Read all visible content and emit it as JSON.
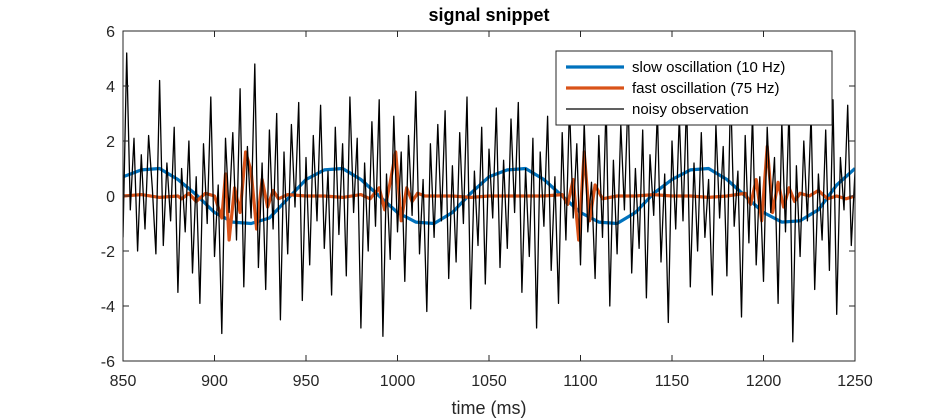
{
  "chart_data": {
    "type": "line",
    "title": "signal snippet",
    "xlabel": "time (ms)",
    "ylabel": "",
    "xlim": [
      850,
      1250
    ],
    "ylim": [
      -6,
      6
    ],
    "xticks": [
      850,
      900,
      950,
      1000,
      1050,
      1100,
      1150,
      1200,
      1250
    ],
    "yticks": [
      -6,
      -4,
      -2,
      0,
      2,
      4,
      6
    ],
    "grid": false,
    "legend_position": "top-right",
    "series": [
      {
        "name": "slow oscillation (10 Hz)",
        "color": "#0072BD",
        "line_width": "thick",
        "x": [
          850,
          860,
          870,
          880,
          890,
          900,
          910,
          920,
          930,
          940,
          950,
          960,
          970,
          980,
          990,
          1000,
          1010,
          1020,
          1030,
          1040,
          1050,
          1060,
          1070,
          1080,
          1090,
          1100,
          1110,
          1120,
          1130,
          1140,
          1150,
          1160,
          1170,
          1180,
          1190,
          1200,
          1210,
          1220,
          1230,
          1240,
          1250
        ],
        "y": [
          0.7,
          0.95,
          1.0,
          0.6,
          0.05,
          -0.6,
          -0.95,
          -1.0,
          -0.8,
          -0.1,
          0.6,
          0.95,
          1.0,
          0.6,
          0.0,
          -0.6,
          -0.95,
          -1.0,
          -0.6,
          0.1,
          0.7,
          0.95,
          1.0,
          0.6,
          0.0,
          -0.6,
          -0.95,
          -1.0,
          -0.6,
          0.1,
          0.6,
          0.95,
          1.0,
          0.6,
          0.0,
          -0.6,
          -0.95,
          -0.9,
          -0.5,
          0.4,
          1.0
        ]
      },
      {
        "name": "fast oscillation (75 Hz)",
        "color": "#D95319",
        "line_width": "thick",
        "x": [
          850,
          860,
          870,
          880,
          882,
          886,
          890,
          895,
          900,
          904,
          906,
          908,
          911,
          914,
          917,
          920,
          923,
          926,
          929,
          932,
          935,
          940,
          950,
          960,
          970,
          980,
          985,
          990,
          993,
          996,
          999,
          1002,
          1005,
          1008,
          1011,
          1015,
          1020,
          1030,
          1040,
          1050,
          1060,
          1070,
          1080,
          1090,
          1093,
          1096,
          1099,
          1102,
          1105,
          1108,
          1112,
          1120,
          1130,
          1140,
          1150,
          1160,
          1170,
          1180,
          1190,
          1193,
          1196,
          1199,
          1202,
          1205,
          1208,
          1211,
          1214,
          1217,
          1220,
          1225,
          1230,
          1235,
          1240,
          1245,
          1250
        ],
        "y": [
          0.0,
          0.05,
          -0.05,
          0.0,
          -0.1,
          0.1,
          -0.2,
          0.1,
          0.0,
          -0.8,
          0.8,
          -1.6,
          0.3,
          -0.6,
          1.6,
          0.9,
          -1.2,
          0.6,
          -0.4,
          0.2,
          -0.1,
          0.05,
          0.0,
          0.0,
          -0.05,
          0.05,
          -0.1,
          0.3,
          -0.5,
          0.5,
          1.6,
          -0.9,
          0.3,
          -0.2,
          0.1,
          0.0,
          0.0,
          0.0,
          -0.05,
          0.0,
          0.0,
          0.0,
          0.0,
          0.05,
          -0.3,
          0.6,
          -1.6,
          1.6,
          -0.9,
          0.4,
          -0.1,
          0.0,
          0.0,
          0.05,
          0.0,
          0.0,
          -0.05,
          0.0,
          0.1,
          -0.3,
          0.6,
          -0.9,
          1.8,
          -0.6,
          0.5,
          -0.4,
          0.3,
          -0.2,
          0.1,
          0.0,
          0.2,
          -0.1,
          0.0,
          -0.1,
          0.0
        ]
      },
      {
        "name": "noisy observation",
        "color": "#000000",
        "line_width": "thin",
        "x": [
          850,
          852,
          854,
          856,
          858,
          860,
          862,
          864,
          866,
          868,
          870,
          872,
          874,
          876,
          878,
          880,
          882,
          884,
          886,
          888,
          890,
          892,
          894,
          896,
          898,
          900,
          902,
          904,
          906,
          908,
          910,
          912,
          914,
          916,
          918,
          920,
          922,
          924,
          926,
          928,
          930,
          932,
          934,
          936,
          938,
          940,
          942,
          944,
          946,
          948,
          950,
          952,
          954,
          956,
          958,
          960,
          962,
          964,
          966,
          968,
          970,
          972,
          974,
          976,
          978,
          980,
          982,
          984,
          986,
          988,
          990,
          992,
          994,
          996,
          998,
          1000,
          1002,
          1004,
          1006,
          1008,
          1010,
          1012,
          1014,
          1016,
          1018,
          1020,
          1022,
          1024,
          1026,
          1028,
          1030,
          1032,
          1034,
          1036,
          1038,
          1040,
          1042,
          1044,
          1046,
          1048,
          1050,
          1052,
          1054,
          1056,
          1058,
          1060,
          1062,
          1064,
          1066,
          1068,
          1070,
          1072,
          1074,
          1076,
          1078,
          1080,
          1082,
          1084,
          1086,
          1088,
          1090,
          1092,
          1094,
          1096,
          1098,
          1100,
          1102,
          1104,
          1106,
          1108,
          1110,
          1112,
          1114,
          1116,
          1118,
          1120,
          1122,
          1124,
          1126,
          1128,
          1130,
          1132,
          1134,
          1136,
          1138,
          1140,
          1142,
          1144,
          1146,
          1148,
          1150,
          1152,
          1154,
          1156,
          1158,
          1160,
          1162,
          1164,
          1166,
          1168,
          1170,
          1172,
          1174,
          1176,
          1178,
          1180,
          1182,
          1184,
          1186,
          1188,
          1190,
          1192,
          1194,
          1196,
          1198,
          1200,
          1202,
          1204,
          1206,
          1208,
          1210,
          1212,
          1214,
          1216,
          1218,
          1220,
          1222,
          1224,
          1226,
          1228,
          1230,
          1232,
          1234,
          1236,
          1238,
          1240,
          1242,
          1244,
          1246,
          1248,
          1250
        ],
        "y": [
          -1.5,
          5.2,
          -0.5,
          2.1,
          -2.0,
          1.5,
          -1.2,
          2.2,
          0.3,
          -2.1,
          4.2,
          -1.8,
          1.2,
          -0.9,
          2.5,
          -3.5,
          1.0,
          -1.3,
          2.0,
          -2.8,
          0.7,
          -3.9,
          1.9,
          -1.0,
          3.6,
          -2.2,
          0.4,
          -5.0,
          2.1,
          -0.6,
          2.3,
          -1.6,
          3.9,
          -3.3,
          1.8,
          -0.8,
          4.8,
          -2.6,
          1.2,
          -3.4,
          2.4,
          -1.2,
          3.0,
          -4.5,
          1.6,
          -2.1,
          2.6,
          -0.4,
          3.4,
          -3.8,
          1.4,
          -2.5,
          2.2,
          -0.9,
          3.3,
          -1.9,
          0.9,
          -3.6,
          2.5,
          -1.4,
          1.9,
          -2.9,
          3.6,
          -0.6,
          2.1,
          -4.8,
          1.2,
          -2.0,
          2.7,
          -1.1,
          3.5,
          -5.1,
          0.8,
          -2.3,
          2.9,
          -1.3,
          1.6,
          -3.1,
          2.2,
          -0.7,
          3.8,
          -2.1,
          0.6,
          -4.2,
          1.9,
          -1.5,
          2.6,
          -0.9,
          3.1,
          -3.0,
          1.1,
          -2.4,
          2.3,
          -1.0,
          3.6,
          -4.1,
          0.9,
          -1.8,
          2.5,
          -3.2,
          1.7,
          -0.8,
          3.2,
          -2.6,
          1.3,
          -1.9,
          2.8,
          -0.6,
          3.4,
          -3.5,
          1.0,
          -2.2,
          2.1,
          -4.8,
          1.6,
          -1.1,
          2.9,
          -2.7,
          0.7,
          -3.9,
          2.3,
          -1.6,
          3.3,
          -0.8,
          1.9,
          -2.5,
          2.7,
          -1.3,
          0.5,
          -3.0,
          2.2,
          -1.5,
          3.4,
          -4.0,
          1.3,
          -2.1,
          2.6,
          -0.5,
          3.7,
          -2.8,
          1.0,
          -1.9,
          2.4,
          -3.7,
          1.5,
          -0.7,
          3.1,
          -2.4,
          0.8,
          -4.6,
          2.0,
          -1.2,
          2.9,
          -0.9,
          3.5,
          -3.3,
          1.2,
          -2.0,
          2.3,
          -1.5,
          0.6,
          -3.6,
          2.6,
          -0.8,
          1.8,
          -2.9,
          3.9,
          -1.1,
          0.9,
          -4.4,
          2.2,
          -1.7,
          3.0,
          -2.5,
          0.7,
          -3.1,
          2.5,
          -0.6,
          1.4,
          -3.9,
          2.7,
          -1.3,
          3.3,
          -5.3,
          1.1,
          -2.2,
          2.0,
          -0.9,
          3.0,
          -3.4,
          0.8,
          -1.6,
          2.4,
          -2.7,
          3.5,
          -4.3,
          1.4,
          -0.5,
          3.3,
          -1.8,
          0.9
        ]
      }
    ]
  }
}
